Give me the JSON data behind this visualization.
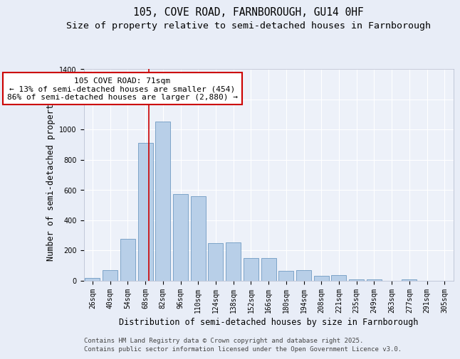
{
  "title1": "105, COVE ROAD, FARNBOROUGH, GU14 0HF",
  "title2": "Size of property relative to semi-detached houses in Farnborough",
  "xlabel": "Distribution of semi-detached houses by size in Farnborough",
  "ylabel": "Number of semi-detached properties",
  "categories": [
    "26sqm",
    "40sqm",
    "54sqm",
    "68sqm",
    "82sqm",
    "96sqm",
    "110sqm",
    "124sqm",
    "138sqm",
    "152sqm",
    "166sqm",
    "180sqm",
    "194sqm",
    "208sqm",
    "221sqm",
    "235sqm",
    "249sqm",
    "263sqm",
    "277sqm",
    "291sqm",
    "305sqm"
  ],
  "values": [
    18,
    70,
    275,
    910,
    1050,
    570,
    560,
    245,
    250,
    150,
    150,
    65,
    70,
    30,
    35,
    5,
    5,
    0,
    5,
    0,
    0
  ],
  "bar_color": "#b8cfe8",
  "bar_edge_color": "#5b8db8",
  "annotation_line1": "105 COVE ROAD: 71sqm",
  "annotation_line2": "← 13% of semi-detached houses are smaller (454)",
  "annotation_line3": "86% of semi-detached houses are larger (2,880) →",
  "annotation_box_color": "#ffffff",
  "annotation_box_edge": "#cc0000",
  "vline_color": "#cc0000",
  "vline_x": 3.21,
  "ylim": [
    0,
    1400
  ],
  "yticks": [
    0,
    200,
    400,
    600,
    800,
    1000,
    1200,
    1400
  ],
  "bg_color": "#e8edf7",
  "plot_bg_color": "#edf1f9",
  "footer_line1": "Contains HM Land Registry data © Crown copyright and database right 2025.",
  "footer_line2": "Contains public sector information licensed under the Open Government Licence v3.0.",
  "title_fontsize": 10.5,
  "subtitle_fontsize": 9.5,
  "axis_label_fontsize": 8.5,
  "tick_fontsize": 7,
  "annotation_fontsize": 8,
  "footer_fontsize": 6.5
}
